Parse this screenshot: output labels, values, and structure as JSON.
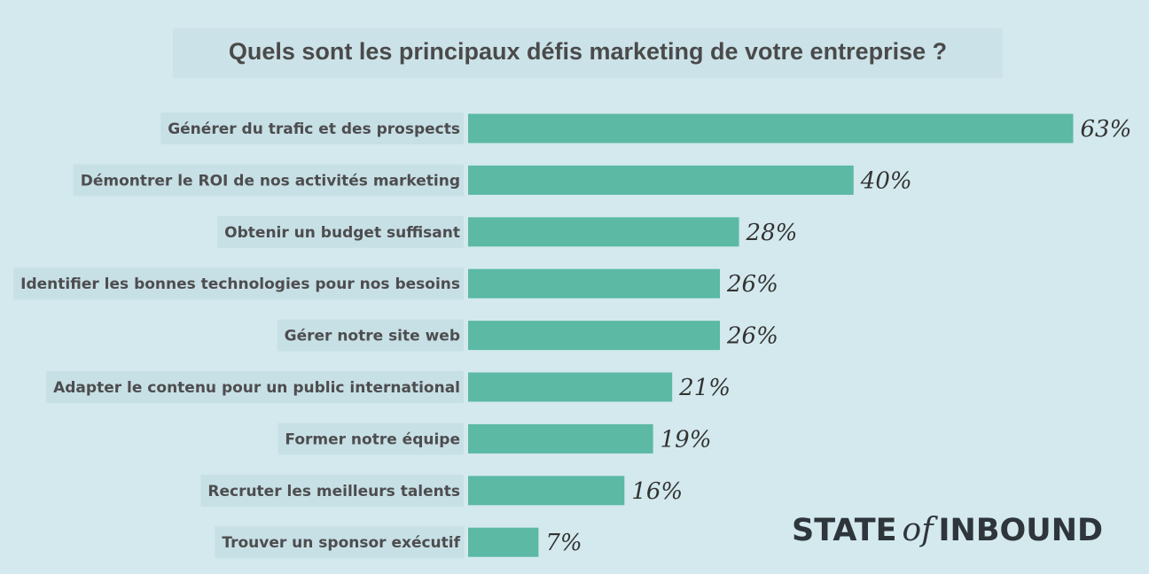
{
  "chart_data": {
    "type": "bar",
    "orientation": "horizontal",
    "title": "Quels sont les principaux défis marketing de votre entreprise ?",
    "categories": [
      "Générer du trafic et des prospects",
      "Démontrer le ROI de nos activités marketing",
      "Obtenir un budget suffisant",
      "Identifier les bonnes technologies pour nos besoins",
      "Gérer notre site web",
      "Adapter le contenu pour un public international",
      "Former notre équipe",
      "Recruter les meilleurs talents",
      "Trouver un sponsor exécutif"
    ],
    "values": [
      63,
      40,
      28,
      26,
      26,
      21,
      19,
      16,
      7
    ],
    "value_labels": [
      "63%",
      "40%",
      "28%",
      "26%",
      "26%",
      "21%",
      "19%",
      "16%",
      "7%"
    ],
    "unit": "%",
    "grid": false,
    "bar_color": "#5bb9a4"
  },
  "brand": {
    "part1": "STATE",
    "part2": "of",
    "part3": "INBOUND"
  }
}
